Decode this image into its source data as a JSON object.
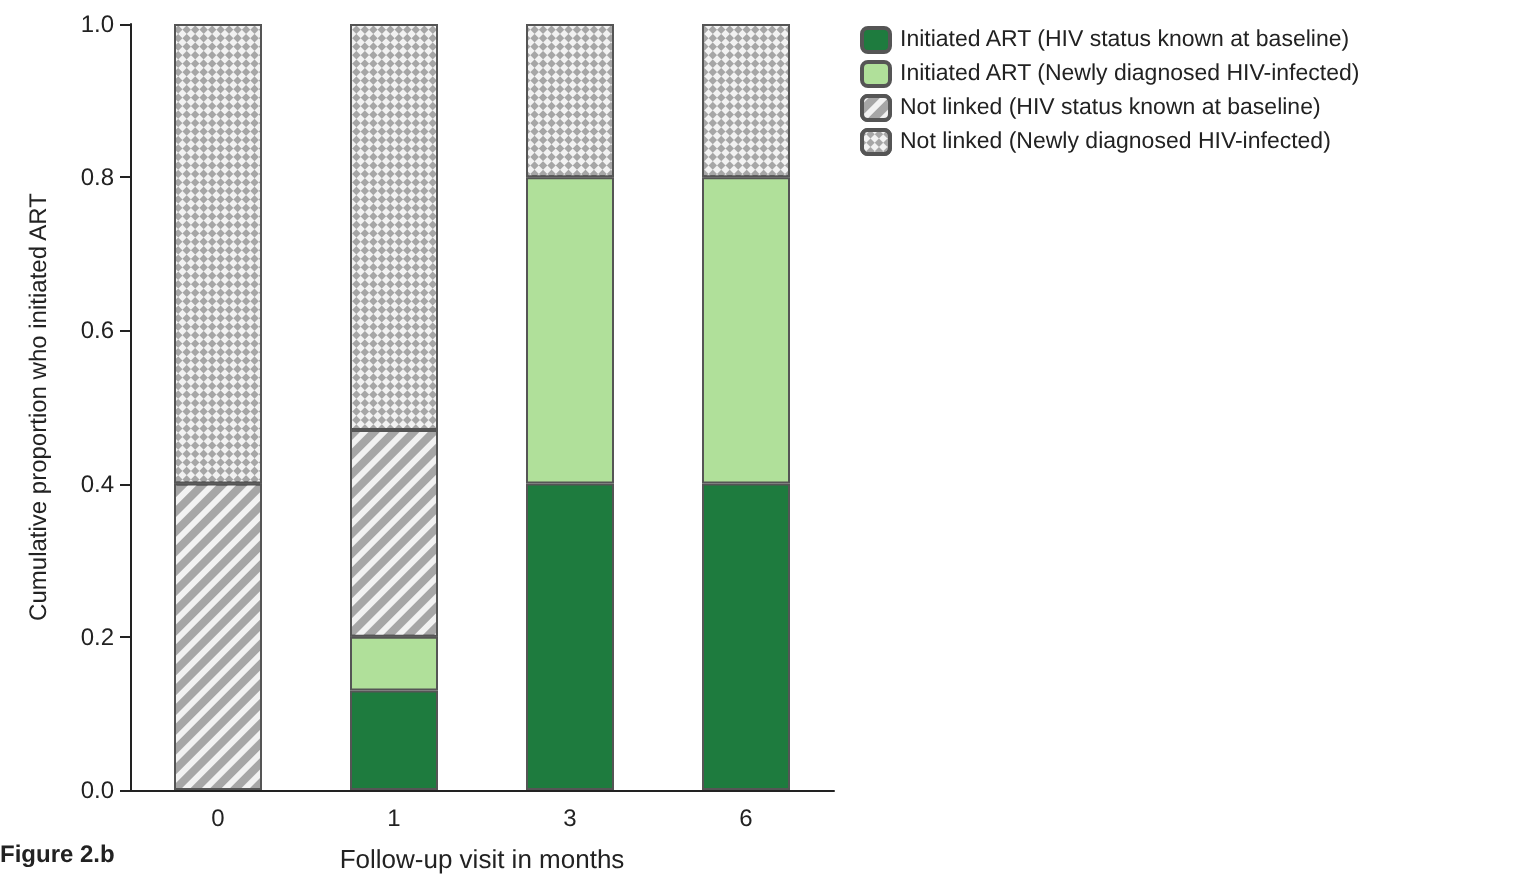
{
  "chart_data": {
    "type": "bar",
    "stacked": true,
    "xlabel": "Follow-up visit in months",
    "ylabel": "Cumulative proportion who initiated ART",
    "categories": [
      "0",
      "1",
      "3",
      "6"
    ],
    "series": [
      {
        "name": "Initiated ART (HIV status known at baseline)",
        "color": "#1e7b3e",
        "values": [
          0,
          0.13,
          0.4,
          0.4
        ]
      },
      {
        "name": "Initiated ART (Newly diagnosed HIV-infected)",
        "color": "#b0e09a",
        "values": [
          0,
          0.07,
          0.4,
          0.4
        ]
      },
      {
        "name": "Not linked (HIV status known at baseline)",
        "color": "#a6a6a6",
        "values": [
          0.4,
          0.27,
          0,
          0
        ]
      },
      {
        "name": "Not linked (Newly diagnosed HIV-infected)",
        "color": "#a6a6a6",
        "values": [
          0.6,
          0.53,
          0.2,
          0.2
        ]
      }
    ],
    "ylim": [
      0,
      1
    ],
    "yticks": [
      {
        "value": 0,
        "label": "0.0"
      },
      {
        "value": 0.2,
        "label": "0.2"
      },
      {
        "value": 0.4,
        "label": "0.4"
      },
      {
        "value": 0.6,
        "label": "0.6"
      },
      {
        "value": 0.8,
        "label": "0.8"
      },
      {
        "value": 1,
        "label": "1.0"
      }
    ],
    "grid": false,
    "legend": "top right",
    "annotations": [
      "Figure 2.b"
    ]
  }
}
